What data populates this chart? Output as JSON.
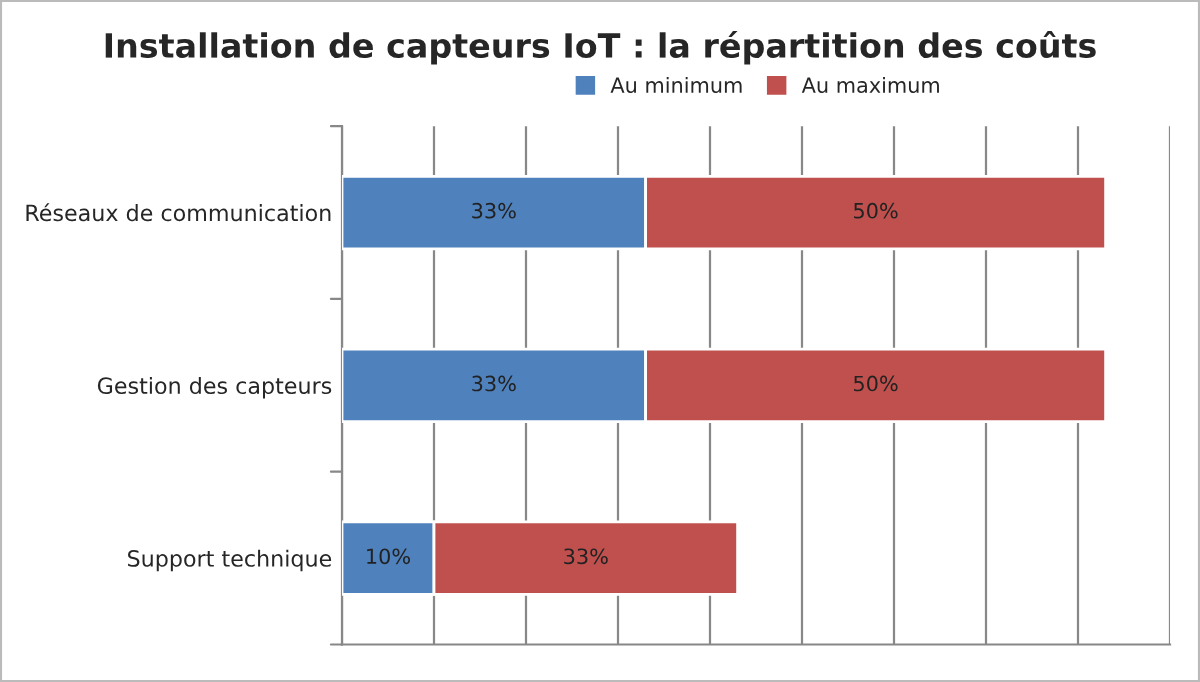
{
  "chart_data": {
    "type": "bar",
    "orientation": "horizontal",
    "stacked": true,
    "title": "Installation de capteurs IoT : la répartition des coûts",
    "categories": [
      "Réseaux de communication",
      "Gestion des capteurs",
      "Support technique"
    ],
    "series": [
      {
        "name": "Au minimum",
        "color": "#4f81bd",
        "values": [
          33,
          33,
          10
        ],
        "value_labels": [
          "33%",
          "33%",
          "10%"
        ]
      },
      {
        "name": "Au maximum",
        "color": "#c0504d",
        "values": [
          50,
          50,
          33
        ],
        "value_labels": [
          "50%",
          "50%",
          "33%"
        ]
      }
    ],
    "xlim": [
      0,
      90
    ],
    "xticks": [
      {
        "value": 0,
        "label": null
      },
      {
        "value": 10,
        "label": null
      },
      {
        "value": 20,
        "label": null
      },
      {
        "value": 30,
        "label": null
      },
      {
        "value": 40,
        "label": null
      },
      {
        "value": 50,
        "label": null
      },
      {
        "value": 60,
        "label": null
      },
      {
        "value": 70,
        "label": null
      },
      {
        "value": 80,
        "label": null
      },
      {
        "value": 90,
        "label": null
      }
    ],
    "grid": "x",
    "legend": "top",
    "tick_labels": "y"
  }
}
